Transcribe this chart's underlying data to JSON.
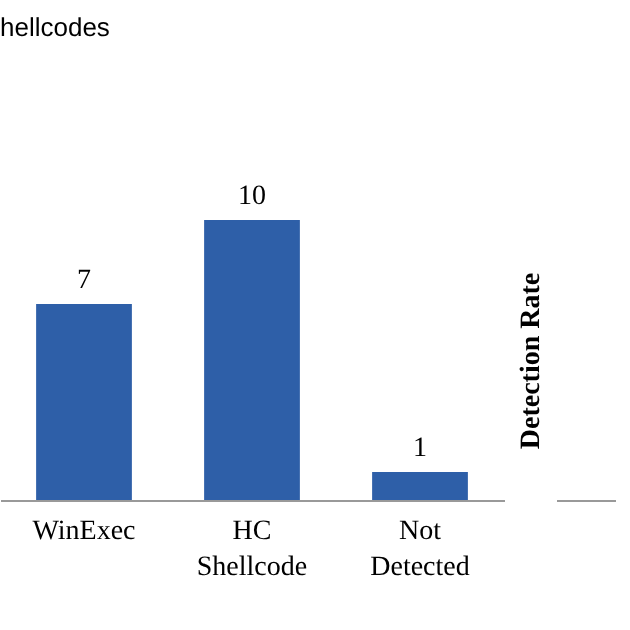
{
  "chart_data": [
    {
      "type": "bar",
      "title": "hellcodes",
      "categories": [
        "WinExec",
        "HC Shellcode",
        "Not Detected"
      ],
      "values": [
        7,
        10,
        1
      ],
      "color": "#2e5fa8",
      "data_labels": true,
      "tick_labels": "x"
    },
    {
      "type": "other",
      "ylabel": "Detection Rate"
    }
  ]
}
